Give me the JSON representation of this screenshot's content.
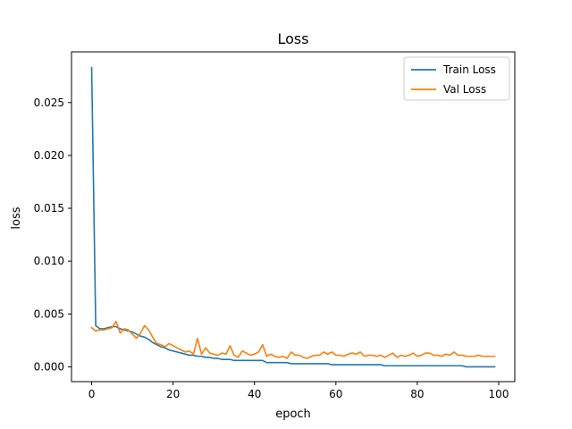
{
  "chart_data": {
    "type": "line",
    "title": "Loss",
    "xlabel": "epoch",
    "ylabel": "loss",
    "xlim": [
      -4.95,
      103.95
    ],
    "ylim": [
      -0.0014,
      0.0298
    ],
    "xticks": [
      0,
      20,
      40,
      60,
      80,
      100
    ],
    "yticks": [
      0.0,
      0.005,
      0.01,
      0.015,
      0.02,
      0.025
    ],
    "xtick_labels": [
      "0",
      "20",
      "40",
      "60",
      "80",
      "100"
    ],
    "ytick_labels": [
      "0.000",
      "0.005",
      "0.010",
      "0.015",
      "0.020",
      "0.025"
    ],
    "grid": false,
    "legend_position": "top-right",
    "series": [
      {
        "name": "Train Loss",
        "color": "#1f77b4",
        "x": [
          0,
          1,
          2,
          3,
          4,
          5,
          6,
          7,
          8,
          9,
          10,
          11,
          12,
          13,
          14,
          15,
          16,
          17,
          18,
          19,
          20,
          21,
          22,
          23,
          24,
          25,
          26,
          27,
          28,
          29,
          30,
          31,
          32,
          33,
          34,
          35,
          36,
          37,
          38,
          39,
          40,
          41,
          42,
          43,
          44,
          45,
          46,
          47,
          48,
          49,
          50,
          51,
          52,
          53,
          54,
          55,
          56,
          57,
          58,
          59,
          60,
          61,
          62,
          63,
          64,
          65,
          66,
          67,
          68,
          69,
          70,
          71,
          72,
          73,
          74,
          75,
          76,
          77,
          78,
          79,
          80,
          81,
          82,
          83,
          84,
          85,
          86,
          87,
          88,
          89,
          90,
          91,
          92,
          93,
          94,
          95,
          96,
          97,
          98,
          99
        ],
        "values": [
          0.0283,
          0.0039,
          0.0036,
          0.0036,
          0.0037,
          0.0038,
          0.0038,
          0.0036,
          0.0035,
          0.0034,
          0.0033,
          0.0031,
          0.0029,
          0.0028,
          0.0026,
          0.0023,
          0.0021,
          0.0019,
          0.0018,
          0.0016,
          0.0015,
          0.0014,
          0.0013,
          0.0012,
          0.0011,
          0.0011,
          0.001,
          0.001,
          0.0009,
          0.0009,
          0.0008,
          0.0008,
          0.0007,
          0.0007,
          0.0007,
          0.0006,
          0.0006,
          0.0006,
          0.0006,
          0.0006,
          0.0006,
          0.0006,
          0.0006,
          0.0004,
          0.0004,
          0.0004,
          0.0004,
          0.0004,
          0.0004,
          0.0003,
          0.0003,
          0.0003,
          0.0003,
          0.0003,
          0.0003,
          0.0003,
          0.0003,
          0.0003,
          0.0003,
          0.0002,
          0.0002,
          0.0002,
          0.0002,
          0.0002,
          0.0002,
          0.0002,
          0.0002,
          0.0002,
          0.0002,
          0.0002,
          0.0002,
          0.0002,
          0.0001,
          0.0001,
          0.0001,
          0.0001,
          0.0001,
          0.0001,
          0.0001,
          0.0001,
          0.0001,
          0.0001,
          0.0001,
          0.0001,
          0.0001,
          0.0001,
          0.0001,
          0.0001,
          0.0001,
          0.0001,
          0.0001,
          0.0001,
          0.0,
          0.0,
          0.0,
          0.0,
          0.0,
          0.0,
          0.0,
          0.0
        ]
      },
      {
        "name": "Val Loss",
        "color": "#ff7f0e",
        "x": [
          0,
          1,
          2,
          3,
          4,
          5,
          6,
          7,
          8,
          9,
          10,
          11,
          12,
          13,
          14,
          15,
          16,
          17,
          18,
          19,
          20,
          21,
          22,
          23,
          24,
          25,
          26,
          27,
          28,
          29,
          30,
          31,
          32,
          33,
          34,
          35,
          36,
          37,
          38,
          39,
          40,
          41,
          42,
          43,
          44,
          45,
          46,
          47,
          48,
          49,
          50,
          51,
          52,
          53,
          54,
          55,
          56,
          57,
          58,
          59,
          60,
          61,
          62,
          63,
          64,
          65,
          66,
          67,
          68,
          69,
          70,
          71,
          72,
          73,
          74,
          75,
          76,
          77,
          78,
          79,
          80,
          81,
          82,
          83,
          84,
          85,
          86,
          87,
          88,
          89,
          90,
          91,
          92,
          93,
          94,
          95,
          96,
          97,
          98,
          99
        ],
        "values": [
          0.0037,
          0.0034,
          0.0035,
          0.0035,
          0.0036,
          0.0037,
          0.0043,
          0.0032,
          0.0036,
          0.0035,
          0.0031,
          0.0027,
          0.0032,
          0.0039,
          0.0035,
          0.0028,
          0.0022,
          0.0021,
          0.0019,
          0.0022,
          0.002,
          0.0018,
          0.0016,
          0.0014,
          0.0015,
          0.0012,
          0.0027,
          0.0012,
          0.0018,
          0.0013,
          0.0012,
          0.0011,
          0.0013,
          0.0012,
          0.002,
          0.0011,
          0.0009,
          0.0015,
          0.0013,
          0.0011,
          0.0012,
          0.0014,
          0.0021,
          0.001,
          0.0012,
          0.001,
          0.0009,
          0.001,
          0.0008,
          0.0014,
          0.0011,
          0.0011,
          0.0009,
          0.0008,
          0.001,
          0.0011,
          0.0011,
          0.0014,
          0.0012,
          0.0014,
          0.0011,
          0.0011,
          0.001,
          0.0012,
          0.0013,
          0.0012,
          0.0014,
          0.001,
          0.0011,
          0.0011,
          0.001,
          0.0011,
          0.0009,
          0.0011,
          0.0013,
          0.0009,
          0.0011,
          0.001,
          0.0011,
          0.0013,
          0.001,
          0.0011,
          0.0013,
          0.0013,
          0.0011,
          0.0011,
          0.001,
          0.0012,
          0.0011,
          0.0014,
          0.0011,
          0.0011,
          0.001,
          0.001,
          0.001,
          0.0011,
          0.001,
          0.001,
          0.001,
          0.001
        ]
      }
    ]
  }
}
